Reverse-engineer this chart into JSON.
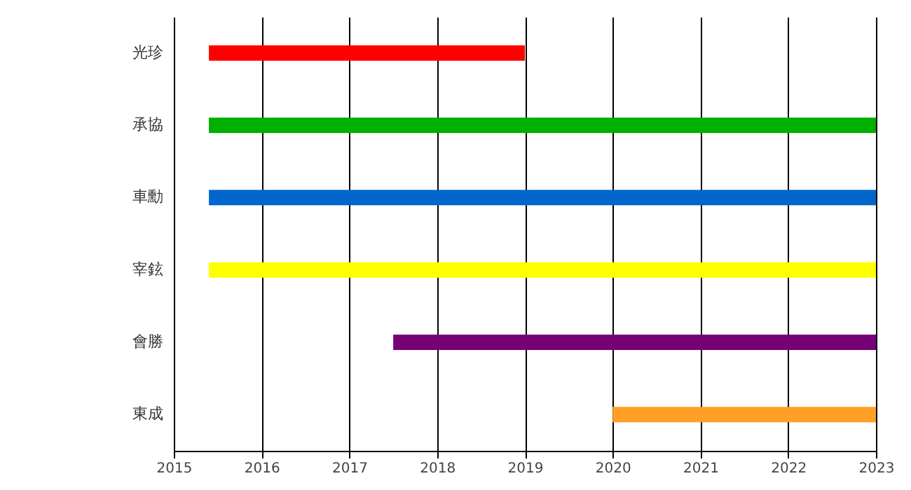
{
  "chart_data": {
    "type": "bar",
    "orientation": "horizontal",
    "categories": [
      "光珍",
      "承協",
      "車勳",
      "宰鉉",
      "會勝",
      "東成"
    ],
    "values": [
      3.6,
      7.6,
      7.6,
      7.6,
      5.5,
      3.0
    ],
    "base": [
      2015.4,
      2015.4,
      2015.4,
      2015.4,
      2017.5,
      2020.0
    ],
    "colors": [
      "#ff0000",
      "#00b000",
      "#0066cc",
      "#ffff00",
      "#770077",
      "#ff9f26"
    ],
    "xlim": [
      2015,
      2023
    ],
    "xticks": [
      2015,
      2016,
      2017,
      2018,
      2019,
      2020,
      2021,
      2022,
      2023
    ],
    "grid": "x"
  }
}
